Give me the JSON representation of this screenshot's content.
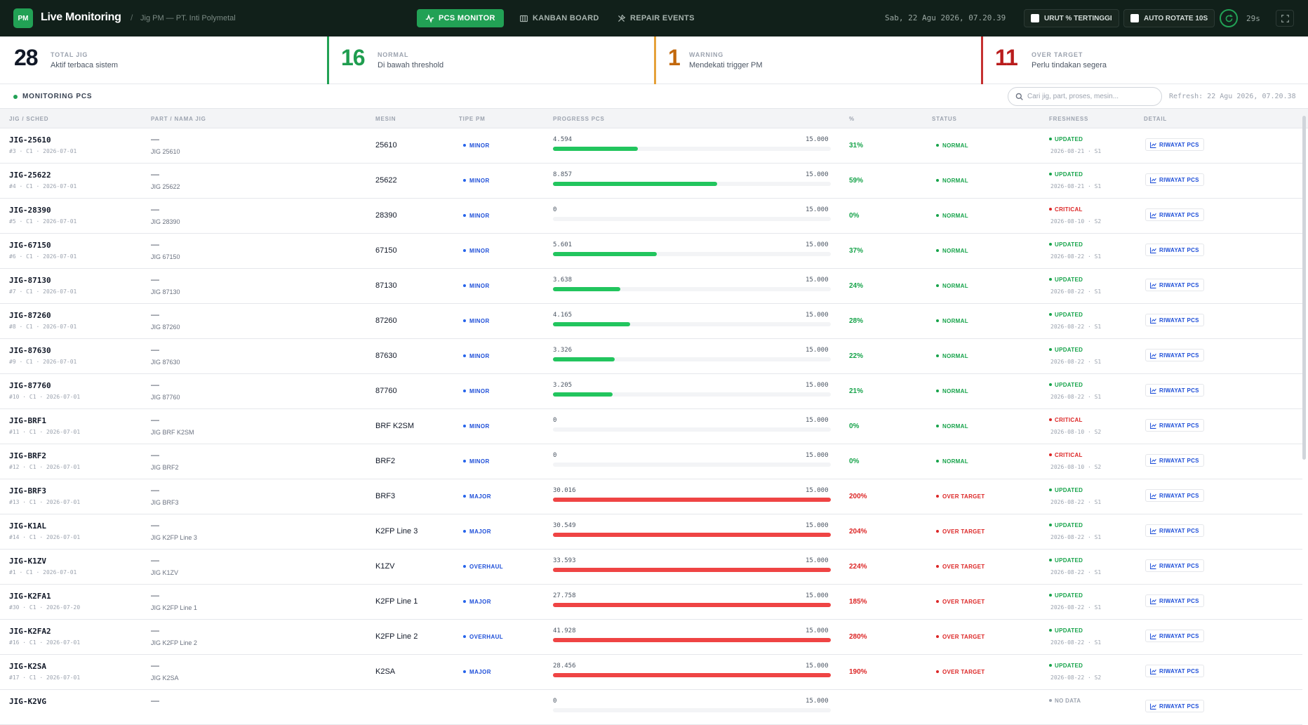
{
  "app": {
    "logo": "PM",
    "title": "Live Monitoring",
    "breadcrumb_sep": "/",
    "breadcrumb": "Jig PM — PT. Inti Polymetal"
  },
  "nav": {
    "pcs_monitor": "PCS MONITOR",
    "kanban_board": "KANBAN BOARD",
    "repair_events": "REPAIR EVENTS"
  },
  "header": {
    "datetime": "Sab, 22 Agu 2026, 07.20.39",
    "sort_toggle": "URUT % TERTINGGI",
    "rotate_toggle": "AUTO ROTATE 10S",
    "countdown": "29s"
  },
  "summary": [
    {
      "value": "28",
      "label": "TOTAL JIG",
      "sub": "Aktif terbaca sistem",
      "color": "#111827",
      "accent": "#d1d5db"
    },
    {
      "value": "16",
      "label": "NORMAL",
      "sub": "Di bawah threshold",
      "color": "#1f9d4f",
      "accent": "#22a155"
    },
    {
      "value": "1",
      "label": "WARNING",
      "sub": "Mendekati trigger PM",
      "color": "#c2680c",
      "accent": "#e5a13a"
    },
    {
      "value": "11",
      "label": "OVER TARGET",
      "sub": "Perlu tindakan segera",
      "color": "#b91c1c",
      "accent": "#c53030"
    }
  ],
  "toolbar": {
    "title": "MONITORING PCS",
    "search_placeholder": "Cari jig, part, proses, mesin...",
    "refresh": "Refresh: 22 Agu 2026, 07.20.38"
  },
  "columns": {
    "jig": "JIG / SCHED",
    "part": "PART / NAMA JIG",
    "mesin": "MESIN",
    "tipe": "TIPE PM",
    "progress": "PROGRESS PCS",
    "pct": "%",
    "status": "STATUS",
    "fresh": "FRESHNESS",
    "detail": "DETAIL"
  },
  "detail_label": "RIWAYAT PCS",
  "colors": {
    "green": "#22c55e",
    "red": "#ef4444",
    "normal": "#16a34a",
    "over": "#dc2626",
    "critical": "#dc2626",
    "updated": "#16a34a"
  },
  "rows": [
    {
      "jig": "JIG-25610",
      "sched": "#3 · C1 · 2026-07-01",
      "part": "—",
      "name": "JIG 25610",
      "mesin": "25610",
      "tipe": "MINOR",
      "val": "4.594",
      "target": "15.000",
      "pct": "31%",
      "ratio": 0.306,
      "status": "NORMAL",
      "fresh": "UPDATED",
      "fdate": "2026-08-21 · S1"
    },
    {
      "jig": "JIG-25622",
      "sched": "#4 · C1 · 2026-07-01",
      "part": "—",
      "name": "JIG 25622",
      "mesin": "25622",
      "tipe": "MINOR",
      "val": "8.857",
      "target": "15.000",
      "pct": "59%",
      "ratio": 0.59,
      "status": "NORMAL",
      "fresh": "UPDATED",
      "fdate": "2026-08-21 · S1"
    },
    {
      "jig": "JIG-28390",
      "sched": "#5 · C1 · 2026-07-01",
      "part": "—",
      "name": "JIG 28390",
      "mesin": "28390",
      "tipe": "MINOR",
      "val": "0",
      "target": "15.000",
      "pct": "0%",
      "ratio": 0,
      "status": "NORMAL",
      "fresh": "CRITICAL",
      "fdate": "2026-08-10 · S2"
    },
    {
      "jig": "JIG-67150",
      "sched": "#6 · C1 · 2026-07-01",
      "part": "—",
      "name": "JIG 67150",
      "mesin": "67150",
      "tipe": "MINOR",
      "val": "5.601",
      "target": "15.000",
      "pct": "37%",
      "ratio": 0.373,
      "status": "NORMAL",
      "fresh": "UPDATED",
      "fdate": "2026-08-22 · S1"
    },
    {
      "jig": "JIG-87130",
      "sched": "#7 · C1 · 2026-07-01",
      "part": "—",
      "name": "JIG 87130",
      "mesin": "87130",
      "tipe": "MINOR",
      "val": "3.638",
      "target": "15.000",
      "pct": "24%",
      "ratio": 0.243,
      "status": "NORMAL",
      "fresh": "UPDATED",
      "fdate": "2026-08-22 · S1"
    },
    {
      "jig": "JIG-87260",
      "sched": "#8 · C1 · 2026-07-01",
      "part": "—",
      "name": "JIG 87260",
      "mesin": "87260",
      "tipe": "MINOR",
      "val": "4.165",
      "target": "15.000",
      "pct": "28%",
      "ratio": 0.278,
      "status": "NORMAL",
      "fresh": "UPDATED",
      "fdate": "2026-08-22 · S1"
    },
    {
      "jig": "JIG-87630",
      "sched": "#9 · C1 · 2026-07-01",
      "part": "—",
      "name": "JIG 87630",
      "mesin": "87630",
      "tipe": "MINOR",
      "val": "3.326",
      "target": "15.000",
      "pct": "22%",
      "ratio": 0.222,
      "status": "NORMAL",
      "fresh": "UPDATED",
      "fdate": "2026-08-22 · S1"
    },
    {
      "jig": "JIG-87760",
      "sched": "#10 · C1 · 2026-07-01",
      "part": "—",
      "name": "JIG 87760",
      "mesin": "87760",
      "tipe": "MINOR",
      "val": "3.205",
      "target": "15.000",
      "pct": "21%",
      "ratio": 0.214,
      "status": "NORMAL",
      "fresh": "UPDATED",
      "fdate": "2026-08-22 · S1"
    },
    {
      "jig": "JIG-BRF1",
      "sched": "#11 · C1 · 2026-07-01",
      "part": "—",
      "name": "JIG BRF K2SM",
      "mesin": "BRF K2SM",
      "tipe": "MINOR",
      "val": "0",
      "target": "15.000",
      "pct": "0%",
      "ratio": 0,
      "status": "NORMAL",
      "fresh": "CRITICAL",
      "fdate": "2026-08-10 · S2"
    },
    {
      "jig": "JIG-BRF2",
      "sched": "#12 · C1 · 2026-07-01",
      "part": "—",
      "name": "JIG BRF2",
      "mesin": "BRF2",
      "tipe": "MINOR",
      "val": "0",
      "target": "15.000",
      "pct": "0%",
      "ratio": 0,
      "status": "NORMAL",
      "fresh": "CRITICAL",
      "fdate": "2026-08-10 · S2"
    },
    {
      "jig": "JIG-BRF3",
      "sched": "#13 · C1 · 2026-07-01",
      "part": "—",
      "name": "JIG BRF3",
      "mesin": "BRF3",
      "tipe": "MAJOR",
      "val": "30.016",
      "target": "15.000",
      "pct": "200%",
      "ratio": 1,
      "status": "OVER TARGET",
      "fresh": "UPDATED",
      "fdate": "2026-08-22 · S1"
    },
    {
      "jig": "JIG-K1AL",
      "sched": "#14 · C1 · 2026-07-01",
      "part": "—",
      "name": "JIG K2FP Line 3",
      "mesin": "K2FP Line 3",
      "tipe": "MAJOR",
      "val": "30.549",
      "target": "15.000",
      "pct": "204%",
      "ratio": 1,
      "status": "OVER TARGET",
      "fresh": "UPDATED",
      "fdate": "2026-08-22 · S1"
    },
    {
      "jig": "JIG-K1ZV",
      "sched": "#1 · C1 · 2026-07-01",
      "part": "—",
      "name": "JIG K1ZV",
      "mesin": "K1ZV",
      "tipe": "OVERHAUL",
      "val": "33.593",
      "target": "15.000",
      "pct": "224%",
      "ratio": 1,
      "status": "OVER TARGET",
      "fresh": "UPDATED",
      "fdate": "2026-08-22 · S1"
    },
    {
      "jig": "JIG-K2FA1",
      "sched": "#30 · C1 · 2026-07-20",
      "part": "—",
      "name": "JIG K2FP Line 1",
      "mesin": "K2FP Line 1",
      "tipe": "MAJOR",
      "val": "27.758",
      "target": "15.000",
      "pct": "185%",
      "ratio": 1,
      "status": "OVER TARGET",
      "fresh": "UPDATED",
      "fdate": "2026-08-22 · S1"
    },
    {
      "jig": "JIG-K2FA2",
      "sched": "#16 · C1 · 2026-07-01",
      "part": "—",
      "name": "JIG K2FP Line 2",
      "mesin": "K2FP Line 2",
      "tipe": "OVERHAUL",
      "val": "41.928",
      "target": "15.000",
      "pct": "280%",
      "ratio": 1,
      "status": "OVER TARGET",
      "fresh": "UPDATED",
      "fdate": "2026-08-22 · S1"
    },
    {
      "jig": "JIG-K2SA",
      "sched": "#17 · C1 · 2026-07-01",
      "part": "—",
      "name": "JIG K2SA",
      "mesin": "K2SA",
      "tipe": "MAJOR",
      "val": "28.456",
      "target": "15.000",
      "pct": "190%",
      "ratio": 1,
      "status": "OVER TARGET",
      "fresh": "UPDATED",
      "fdate": "2026-08-22 · S2"
    },
    {
      "jig": "JIG-K2VG",
      "sched": "",
      "part": "—",
      "name": "",
      "mesin": "",
      "tipe": "",
      "val": "0",
      "target": "15.000",
      "pct": "",
      "ratio": 0,
      "status": "",
      "fresh": "NO DATA",
      "fdate": ""
    }
  ]
}
